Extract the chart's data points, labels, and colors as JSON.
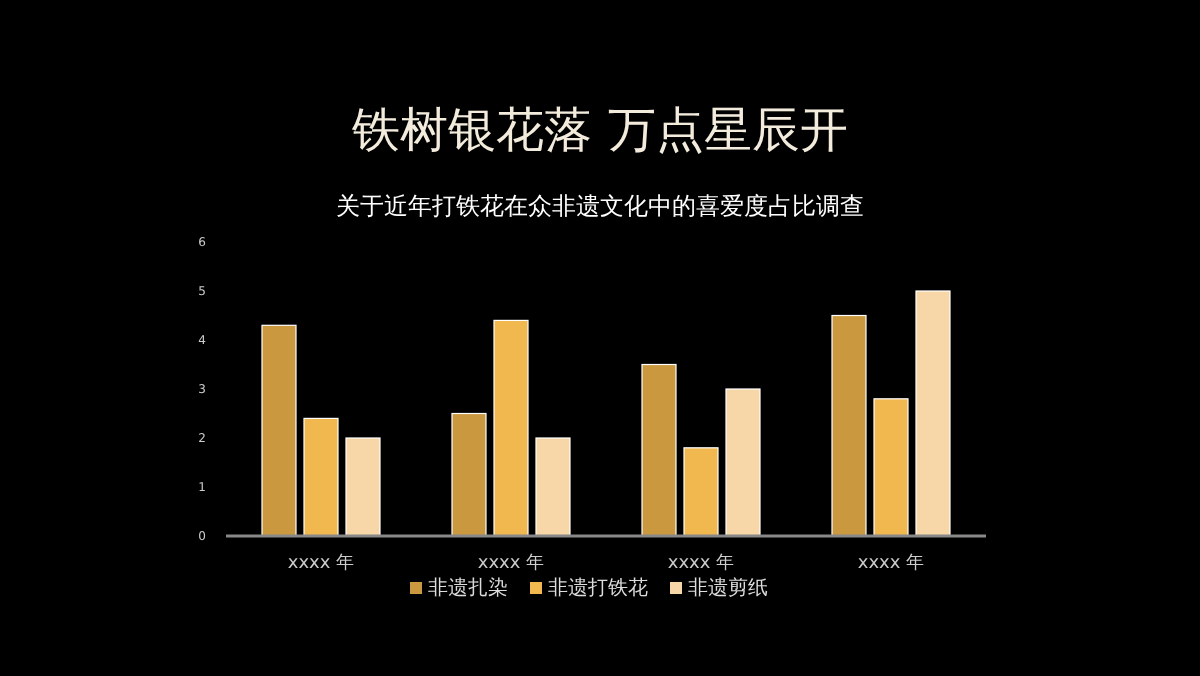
{
  "chart_data": {
    "type": "bar",
    "title": "铁树银花落 万点星辰开",
    "subtitle": "关于近年打铁花在众非遗文化中的喜爱度占比调查",
    "categories": [
      "xxxx 年",
      "xxxx 年",
      "xxxx 年",
      "xxxx 年"
    ],
    "series": [
      {
        "name": "非遗扎染",
        "color": "#c9983f",
        "values": [
          4.3,
          2.5,
          3.5,
          4.5
        ]
      },
      {
        "name": "非遗打铁花",
        "color": "#f1b850",
        "values": [
          2.4,
          4.4,
          1.8,
          2.8
        ]
      },
      {
        "name": "非遗剪纸",
        "color": "#f7d7a8",
        "values": [
          2.0,
          2.0,
          3.0,
          5.0
        ]
      }
    ],
    "ylim": [
      0,
      6
    ],
    "yticks": [
      0,
      1,
      2,
      3,
      4,
      5,
      6
    ],
    "grid": false,
    "legend": "bottom"
  }
}
